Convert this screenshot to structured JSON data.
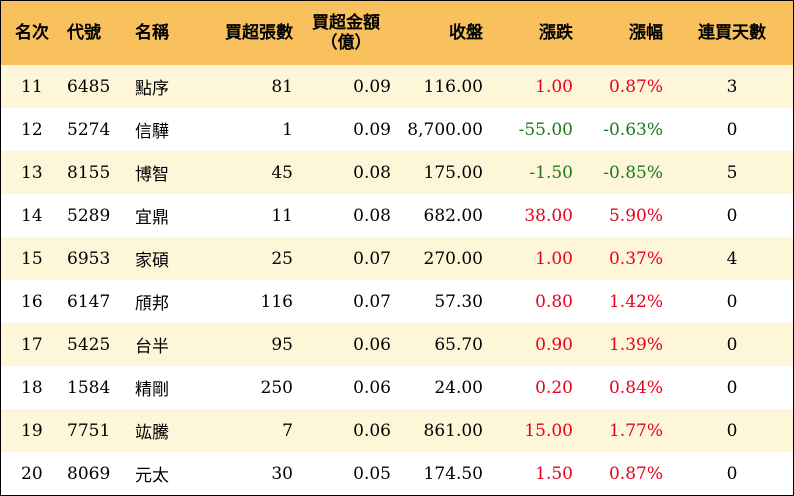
{
  "headers": {
    "rank": "名次",
    "code": "代號",
    "name": "名稱",
    "net_buy_lots": "買超張數",
    "net_buy_amount_line1": "買超金額",
    "net_buy_amount_line2": "（億）",
    "close": "收盤",
    "change": "漲跌",
    "change_pct": "漲幅",
    "consecutive_days": "連買天數"
  },
  "colors": {
    "header_bg": "#f8c15e",
    "odd_row_bg": "#fdf6d8",
    "up": "#e8001c",
    "down": "#1b7a1b"
  },
  "rows": [
    {
      "rank": "11",
      "code": "6485",
      "name": "點序",
      "lots": "81",
      "amount": "0.09",
      "close": "116.00",
      "change": "1.00",
      "pct": "0.87%",
      "days": "3",
      "dir": "up"
    },
    {
      "rank": "12",
      "code": "5274",
      "name": "信驊",
      "lots": "1",
      "amount": "0.09",
      "close": "8,700.00",
      "change": "-55.00",
      "pct": "-0.63%",
      "days": "0",
      "dir": "down"
    },
    {
      "rank": "13",
      "code": "8155",
      "name": "博智",
      "lots": "45",
      "amount": "0.08",
      "close": "175.00",
      "change": "-1.50",
      "pct": "-0.85%",
      "days": "5",
      "dir": "down"
    },
    {
      "rank": "14",
      "code": "5289",
      "name": "宜鼎",
      "lots": "11",
      "amount": "0.08",
      "close": "682.00",
      "change": "38.00",
      "pct": "5.90%",
      "days": "0",
      "dir": "up"
    },
    {
      "rank": "15",
      "code": "6953",
      "name": "家碩",
      "lots": "25",
      "amount": "0.07",
      "close": "270.00",
      "change": "1.00",
      "pct": "0.37%",
      "days": "4",
      "dir": "up"
    },
    {
      "rank": "16",
      "code": "6147",
      "name": "頎邦",
      "lots": "116",
      "amount": "0.07",
      "close": "57.30",
      "change": "0.80",
      "pct": "1.42%",
      "days": "0",
      "dir": "up"
    },
    {
      "rank": "17",
      "code": "5425",
      "name": "台半",
      "lots": "95",
      "amount": "0.06",
      "close": "65.70",
      "change": "0.90",
      "pct": "1.39%",
      "days": "0",
      "dir": "up"
    },
    {
      "rank": "18",
      "code": "1584",
      "name": "精剛",
      "lots": "250",
      "amount": "0.06",
      "close": "24.00",
      "change": "0.20",
      "pct": "0.84%",
      "days": "0",
      "dir": "up"
    },
    {
      "rank": "19",
      "code": "7751",
      "name": "竑騰",
      "lots": "7",
      "amount": "0.06",
      "close": "861.00",
      "change": "15.00",
      "pct": "1.77%",
      "days": "0",
      "dir": "up"
    },
    {
      "rank": "20",
      "code": "8069",
      "name": "元太",
      "lots": "30",
      "amount": "0.05",
      "close": "174.50",
      "change": "1.50",
      "pct": "0.87%",
      "days": "0",
      "dir": "up"
    }
  ]
}
